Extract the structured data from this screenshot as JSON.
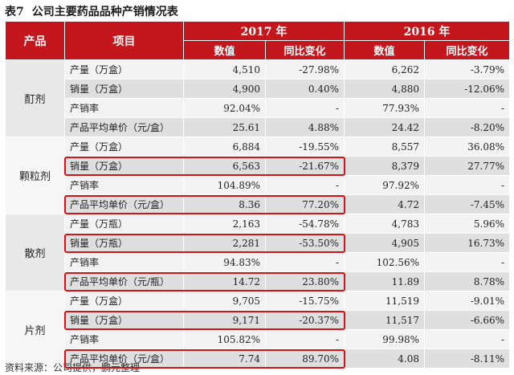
{
  "title": {
    "label": "表7",
    "text": "公司主要药品品种产销情况表"
  },
  "header": {
    "product": "产品",
    "item": "项目",
    "year1": "2017 年",
    "year2": "2016 年",
    "value": "数值",
    "yoy": "同比变化"
  },
  "groups": [
    {
      "product": "酊剂",
      "rows": [
        {
          "item": "产量（万盒）",
          "v2017": "4,510",
          "y2017": "-27.98%",
          "v2016": "6,262",
          "y2016": "-3.79%"
        },
        {
          "item": "销量（万盒）",
          "v2017": "4,900",
          "y2017": "0.40%",
          "v2016": "4,880",
          "y2016": "-12.06%"
        },
        {
          "item": "产销率",
          "v2017": "92.04%",
          "y2017": "-",
          "v2016": "77.93%",
          "y2016": "-"
        },
        {
          "item": "产品平均单价（元/盒）",
          "v2017": "25.61",
          "y2017": "4.88%",
          "v2016": "24.42",
          "y2016": "-8.20%"
        }
      ]
    },
    {
      "product": "颗粒剂",
      "rows": [
        {
          "item": "产量（万盒）",
          "v2017": "6,884",
          "y2017": "-19.55%",
          "v2016": "8,557",
          "y2016": "36.08%"
        },
        {
          "item": "销量（万盒）",
          "v2017": "6,563",
          "y2017": "-21.67%",
          "v2016": "8,379",
          "y2016": "27.77%"
        },
        {
          "item": "产销率",
          "v2017": "104.89%",
          "y2017": "-",
          "v2016": "97.92%",
          "y2016": "-"
        },
        {
          "item": "产品平均单价（元/盒）",
          "v2017": "8.36",
          "y2017": "77.20%",
          "v2016": "4.72",
          "y2016": "-7.45%"
        }
      ]
    },
    {
      "product": "散剂",
      "rows": [
        {
          "item": "产量（万瓶）",
          "v2017": "2,163",
          "y2017": "-54.78%",
          "v2016": "4,783",
          "y2016": "5.96%"
        },
        {
          "item": "销量（万瓶）",
          "v2017": "2,281",
          "y2017": "-53.50%",
          "v2016": "4,905",
          "y2016": "16.73%"
        },
        {
          "item": "产销率",
          "v2017": "94.83%",
          "y2017": "-",
          "v2016": "102.56%",
          "y2016": "-"
        },
        {
          "item": "产品平均单价（元/瓶）",
          "v2017": "14.72",
          "y2017": "23.80%",
          "v2016": "11.89",
          "y2016": "8.78%"
        }
      ]
    },
    {
      "product": "片剂",
      "rows": [
        {
          "item": "产量（万盒）",
          "v2017": "9,705",
          "y2017": "-15.75%",
          "v2016": "11,519",
          "y2016": "-9.01%"
        },
        {
          "item": "销量（万盒）",
          "v2017": "9,171",
          "y2017": "-20.37%",
          "v2016": "11,517",
          "y2016": "-6.66%"
        },
        {
          "item": "产销率",
          "v2017": "105.82%",
          "y2017": "-",
          "v2016": "99.98%",
          "y2016": "-"
        },
        {
          "item": "产品平均单价（元/盒）",
          "v2017": "7.74",
          "y2017": "89.70%",
          "v2016": "4.08",
          "y2016": "-8.11%"
        }
      ]
    }
  ],
  "source": "资料来源：公司提供，鹏元整理",
  "colors": {
    "header": "#c4171d",
    "highlight_box": "#d0121b"
  }
}
